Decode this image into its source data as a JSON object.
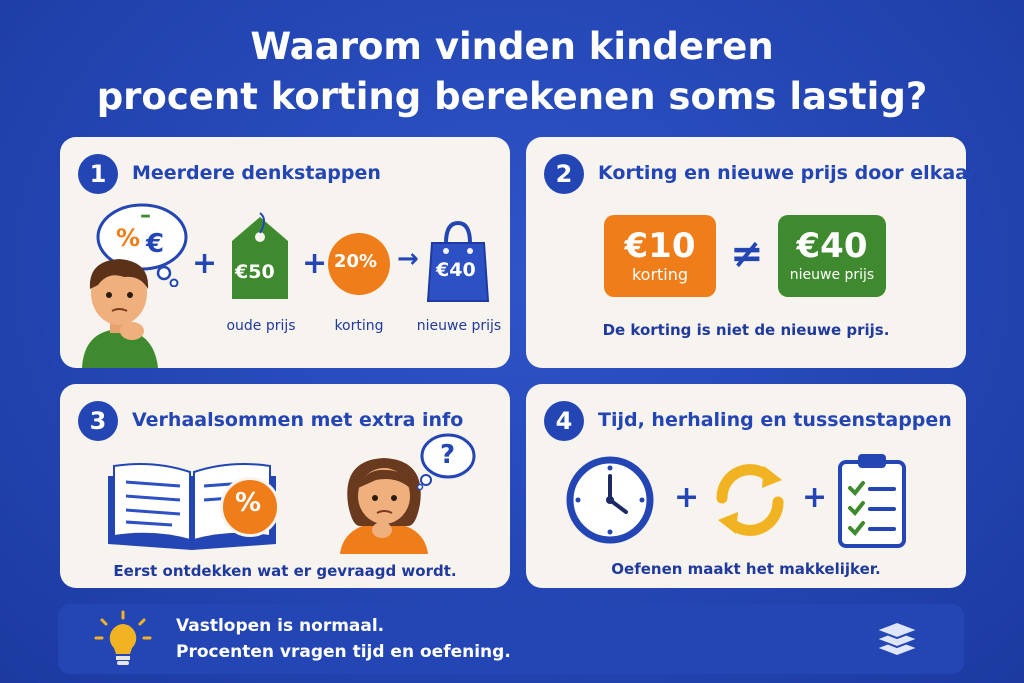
{
  "title": {
    "line1": "Waarom vinden kinderen",
    "line2": "procent korting berekenen soms lastig?"
  },
  "cards": [
    {
      "number": "1",
      "title": "Meerdere denkstappen",
      "thought_symbols": [
        "%",
        "€",
        "–"
      ],
      "price_tag": "€50",
      "price_tag_label": "oude prijs",
      "discount_circle": "20%",
      "discount_label": "korting",
      "bag_value": "€40",
      "bag_label": "nieuwe prijs",
      "plus": "+",
      "arrow": "→"
    },
    {
      "number": "2",
      "title": "Korting en nieuwe prijs door elkaar",
      "discount_box": {
        "value": "€10",
        "label": "korting"
      },
      "not_equal": "≠",
      "price_box": {
        "value": "€40",
        "label": "nieuwe prijs"
      },
      "caption": "De korting is niet de nieuwe prijs."
    },
    {
      "number": "3",
      "title": "Verhaalsommen met extra info",
      "percent_badge": "%",
      "question_mark": "?",
      "caption": "Eerst ontdekken wat er gevraagd wordt."
    },
    {
      "number": "4",
      "title": "Tijd, herhaling en tussenstappen",
      "plus": "+",
      "caption": "Oefenen maakt het makkelijker."
    }
  ],
  "footer": {
    "line1": "Vastlopen is normaal.",
    "line2": "Procenten vragen tijd en oefening."
  },
  "colors": {
    "background": "#2446b4",
    "card": "#f7f3ef",
    "green": "#3f8a2e",
    "orange": "#ef7d1a",
    "blue": "#2446b4"
  }
}
